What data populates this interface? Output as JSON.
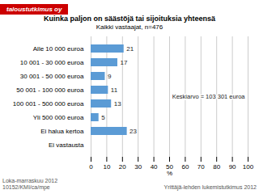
{
  "chart_data": {
    "type": "bar",
    "orientation": "horizontal",
    "title": "Kuinka paljon on säästöjä tai sijoituksia yhteensä",
    "subtitle": "Kaikki vastaajat, n=476",
    "logo_text": "taloustutkimus oy",
    "logo_color": "#cc0000",
    "categories": [
      "Alle 10 000 euroa",
      "10 001 - 30 000 euroa",
      "30 001 - 50 000 euroa",
      "50 001 - 100 000 euroa",
      "100 001 - 500 000 euroa",
      "Yli 500 000 euroa",
      "Ei halua kertoa",
      "Ei vastausta"
    ],
    "values": [
      21,
      17,
      9,
      11,
      13,
      5,
      23,
      0
    ],
    "value_labels": [
      "21",
      "17",
      "9",
      "11",
      "13",
      "5",
      "23",
      null
    ],
    "data_labels": true,
    "color": "#5b9bd5",
    "xlabel": "%",
    "xlim": [
      0,
      100
    ],
    "xticks": [
      0,
      10,
      20,
      30,
      40,
      50,
      60,
      70,
      80,
      90,
      100
    ],
    "grid": true,
    "annotation": "Keskiarvo = 103 301 euroa",
    "footer_left": "Loka-marraskuu 2012\n10152/KMI/ca/mpe",
    "footer_right": "Yrittäjä-lehden lukemistutkimus 2012"
  }
}
